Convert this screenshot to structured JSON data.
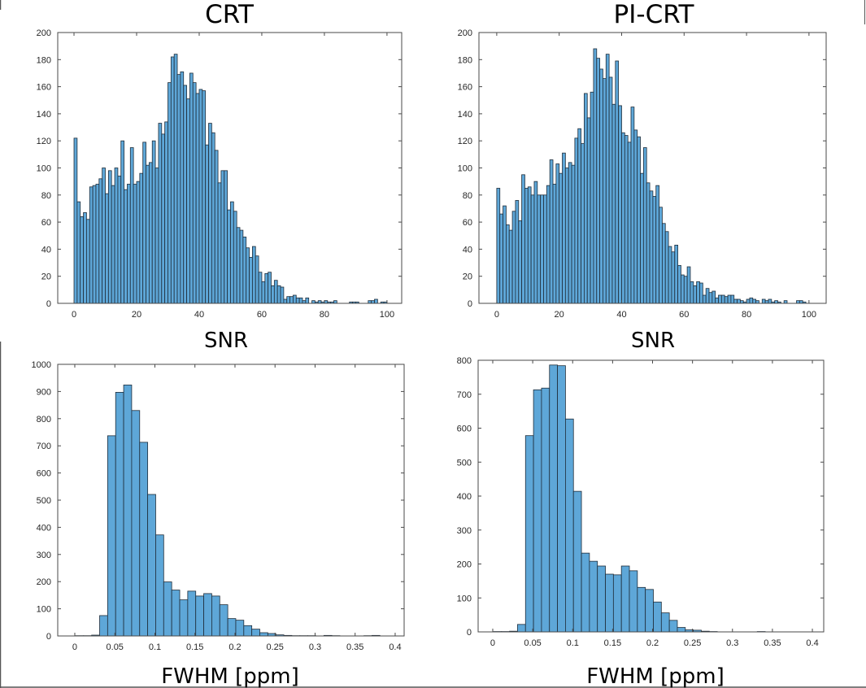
{
  "colors": {
    "bar_fill": "#5ea7d8",
    "bar_edge": "#1f2d3a",
    "axis": "#4a4a4a"
  },
  "chart_data": [
    {
      "type": "bar",
      "title": "CRT",
      "xlabel": "SNR",
      "ylabel": "",
      "bin_start": 0,
      "bin_width": 1,
      "counts": [
        122,
        75,
        64,
        67,
        62,
        86,
        87,
        88,
        92,
        100,
        81,
        98,
        87,
        100,
        94,
        120,
        84,
        88,
        115,
        88,
        90,
        96,
        119,
        102,
        104,
        120,
        100,
        133,
        125,
        134,
        163,
        182,
        184,
        169,
        171,
        161,
        151,
        170,
        163,
        155,
        158,
        157,
        117,
        133,
        126,
        113,
        89,
        98,
        98,
        69,
        75,
        68,
        56,
        54,
        49,
        41,
        34,
        42,
        35,
        23,
        16,
        22,
        23,
        13,
        17,
        13,
        12,
        3,
        5,
        5,
        6,
        4,
        4,
        2,
        4,
        0,
        2,
        1,
        2,
        1,
        2,
        1,
        1,
        2,
        0,
        0,
        0,
        0,
        1,
        1,
        1,
        0,
        0,
        0,
        2,
        2,
        3,
        0,
        1,
        1
      ],
      "xlim": [
        -5.2,
        104.7
      ],
      "ylim": [
        0,
        200
      ],
      "xticks": [
        0,
        20,
        40,
        60,
        80,
        100
      ],
      "xtick_labels": [
        "0",
        "20",
        "40",
        "60",
        "80",
        "100"
      ],
      "yticks": [
        0,
        20,
        40,
        60,
        80,
        100,
        120,
        140,
        160,
        180,
        200
      ],
      "ytick_labels": [
        "0",
        "20",
        "40",
        "60",
        "80",
        "100",
        "120",
        "140",
        "160",
        "180",
        "200"
      ],
      "grid": false
    },
    {
      "type": "bar",
      "title": "PI-CRT",
      "xlabel": "SNR",
      "ylabel": "",
      "bin_start": 0,
      "bin_width": 1,
      "counts": [
        85,
        66,
        72,
        58,
        54,
        68,
        76,
        61,
        95,
        85,
        86,
        80,
        90,
        80,
        80,
        80,
        87,
        106,
        88,
        103,
        96,
        111,
        100,
        104,
        102,
        122,
        129,
        118,
        155,
        137,
        156,
        188,
        181,
        173,
        166,
        184,
        167,
        147,
        179,
        146,
        126,
        124,
        119,
        145,
        128,
        123,
        96,
        115,
        89,
        83,
        79,
        87,
        71,
        59,
        53,
        42,
        38,
        43,
        28,
        21,
        20,
        27,
        16,
        13,
        16,
        15,
        6,
        11,
        8,
        9,
        4,
        6,
        6,
        5,
        6,
        6,
        3,
        3,
        2,
        1,
        3,
        4,
        3,
        2,
        0,
        3,
        2,
        3,
        1,
        2,
        1,
        0,
        2,
        0,
        0,
        0,
        2,
        2,
        1,
        0
      ],
      "xlim": [
        -5.7,
        105.5
      ],
      "ylim": [
        0,
        200
      ],
      "xticks": [
        0,
        20,
        40,
        60,
        80,
        100
      ],
      "xtick_labels": [
        "0",
        "20",
        "40",
        "60",
        "80",
        "100"
      ],
      "yticks": [
        0,
        20,
        40,
        60,
        80,
        100,
        120,
        140,
        160,
        180,
        200
      ],
      "ytick_labels": [
        "0",
        "20",
        "40",
        "60",
        "80",
        "100",
        "120",
        "140",
        "160",
        "180",
        "200"
      ],
      "grid": false
    },
    {
      "type": "bar",
      "title": "",
      "xlabel": "FWHM [ppm]",
      "ylabel": "",
      "bin_start": 0.001,
      "bin_width": 0.01,
      "counts": [
        1,
        1,
        3,
        75,
        737,
        897,
        924,
        830,
        713,
        521,
        372,
        199,
        169,
        133,
        165,
        147,
        156,
        147,
        115,
        64,
        58,
        38,
        25,
        12,
        9,
        4,
        2,
        1,
        1,
        1,
        0,
        2,
        1,
        0,
        0,
        0,
        1,
        2,
        0,
        0
      ],
      "xlim": [
        -0.0213,
        0.4112
      ],
      "ylim": [
        0,
        1000
      ],
      "xticks": [
        0,
        0.05,
        0.1,
        0.15,
        0.2,
        0.25,
        0.3,
        0.35,
        0.4
      ],
      "xtick_labels": [
        "0",
        "0.05",
        "0.1",
        "0.15",
        "0.2",
        "0.25",
        "0.3",
        "0.35",
        "0.4"
      ],
      "yticks": [
        0,
        100,
        200,
        300,
        400,
        500,
        600,
        700,
        800,
        900,
        1000
      ],
      "ytick_labels": [
        "0",
        "100",
        "200",
        "300",
        "400",
        "500",
        "600",
        "700",
        "800",
        "900",
        "1000"
      ],
      "grid": false
    },
    {
      "type": "bar",
      "title": "",
      "xlabel": "FWHM [ppm]",
      "ylabel": "",
      "bin_start": 0.001,
      "bin_width": 0.01,
      "counts": [
        1,
        1,
        2,
        22,
        578,
        713,
        718,
        786,
        784,
        627,
        414,
        232,
        208,
        194,
        170,
        168,
        194,
        180,
        131,
        125,
        88,
        56,
        34,
        13,
        6,
        5,
        2,
        1,
        0,
        0,
        0,
        0,
        0,
        1,
        0,
        0,
        0,
        0,
        0,
        0
      ],
      "xlim": [
        -0.0183,
        0.4142
      ],
      "ylim": [
        0,
        800
      ],
      "xticks": [
        0,
        0.05,
        0.1,
        0.15,
        0.2,
        0.25,
        0.3,
        0.35,
        0.4
      ],
      "xtick_labels": [
        "0",
        "0.05",
        "0.1",
        "0.15",
        "0.2",
        "0.25",
        "0.3",
        "0.35",
        "0.4"
      ],
      "yticks": [
        0,
        100,
        200,
        300,
        400,
        500,
        600,
        700,
        800
      ],
      "ytick_labels": [
        "0",
        "100",
        "200",
        "300",
        "400",
        "500",
        "600",
        "700",
        "800"
      ],
      "grid": false
    }
  ]
}
